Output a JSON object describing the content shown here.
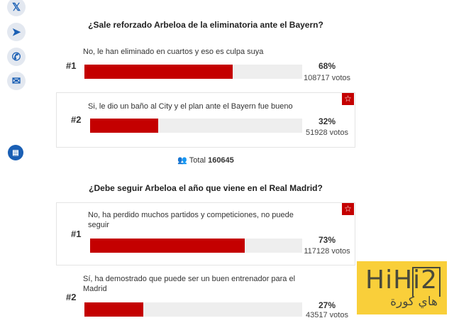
{
  "share": {
    "icons": [
      "x-icon",
      "telegram-icon",
      "whatsapp-icon",
      "email-icon",
      "comments-icon"
    ]
  },
  "polls": [
    {
      "question": "¿Sale reforzado Arbeloa de la eliminatoria ante el Bayern?",
      "options": [
        {
          "rank": "#1",
          "text": "No, le han eliminado en cuartos y eso es culpa suya",
          "percent": 68,
          "percent_label": "68%",
          "votes": "108717 votos"
        },
        {
          "rank": "#2",
          "text": "Si, le dio un baño al City y el plan ante el Bayern fue bueno",
          "percent": 32,
          "percent_label": "32%",
          "votes": "51928 votos"
        }
      ],
      "total_label": "Total",
      "total": "160645"
    },
    {
      "question": "¿Debe seguir Arbeloa el año que viene en el Real Madrid?",
      "options": [
        {
          "rank": "#1",
          "text": "No, ha perdido muchos partidos y competiciones, no puede seguir",
          "percent": 73,
          "percent_label": "73%",
          "votes": "117128 votos"
        },
        {
          "rank": "#2",
          "text": "Sí, ha demostrado que puede ser un buen entrenador para el Madrid",
          "percent": 27,
          "percent_label": "27%",
          "votes": "43517 votos"
        }
      ]
    }
  ],
  "watermark": {
    "brand": "HiHi2",
    "arabic": "هاي كورة"
  },
  "colors": {
    "accent": "#c40000",
    "logo_bg": "#f9cf3a"
  }
}
